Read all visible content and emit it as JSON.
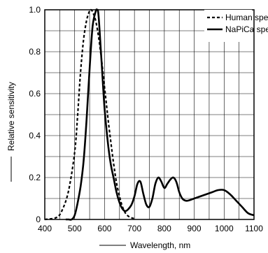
{
  "chart_data": {
    "type": "line",
    "xlabel": "Wavelength, nm",
    "ylabel": "Relative sensitivity",
    "xlim": [
      400,
      1100
    ],
    "ylim": [
      0,
      1.0
    ],
    "x_ticks": [
      "400",
      "500",
      "600",
      "700",
      "800",
      "900",
      "1000",
      "1100"
    ],
    "y_ticks": [
      "0",
      "0.2",
      "0.4",
      "0.6",
      "0.8",
      "1.0"
    ],
    "grid": true,
    "legend_position": "top-right",
    "series": [
      {
        "name": "Human spectral",
        "style": "dashed",
        "color": "#000000",
        "x": [
          400,
          440,
          460,
          480,
          500,
          510,
          520,
          530,
          540,
          550,
          555,
          560,
          570,
          580,
          590,
          600,
          610,
          620,
          630,
          640,
          650,
          660,
          670,
          680,
          690,
          700
        ],
        "y": [
          0.0,
          0.01,
          0.05,
          0.14,
          0.32,
          0.5,
          0.71,
          0.86,
          0.95,
          0.995,
          1.0,
          0.99,
          0.95,
          0.87,
          0.76,
          0.63,
          0.5,
          0.38,
          0.27,
          0.175,
          0.11,
          0.06,
          0.03,
          0.015,
          0.008,
          0.004
        ]
      },
      {
        "name": "NaPiCa spectral",
        "style": "solid",
        "color": "#000000",
        "x": [
          470,
          480,
          490,
          500,
          510,
          520,
          530,
          540,
          550,
          560,
          570,
          575,
          580,
          590,
          600,
          610,
          620,
          630,
          640,
          650,
          660,
          670,
          680,
          690,
          700,
          710,
          720,
          730,
          740,
          750,
          760,
          770,
          780,
          790,
          800,
          810,
          820,
          830,
          840,
          850,
          860,
          870,
          880,
          900,
          920,
          940,
          960,
          980,
          1000,
          1020,
          1040,
          1060,
          1080,
          1100
        ],
        "y": [
          0.0,
          0.0,
          0.0,
          0.02,
          0.08,
          0.16,
          0.28,
          0.48,
          0.72,
          0.92,
          0.99,
          1.0,
          0.97,
          0.75,
          0.53,
          0.38,
          0.27,
          0.2,
          0.13,
          0.08,
          0.05,
          0.04,
          0.05,
          0.07,
          0.11,
          0.17,
          0.18,
          0.12,
          0.07,
          0.06,
          0.1,
          0.17,
          0.2,
          0.18,
          0.15,
          0.17,
          0.19,
          0.2,
          0.18,
          0.13,
          0.1,
          0.09,
          0.09,
          0.1,
          0.11,
          0.12,
          0.13,
          0.14,
          0.14,
          0.12,
          0.09,
          0.06,
          0.03,
          0.02
        ]
      }
    ]
  }
}
